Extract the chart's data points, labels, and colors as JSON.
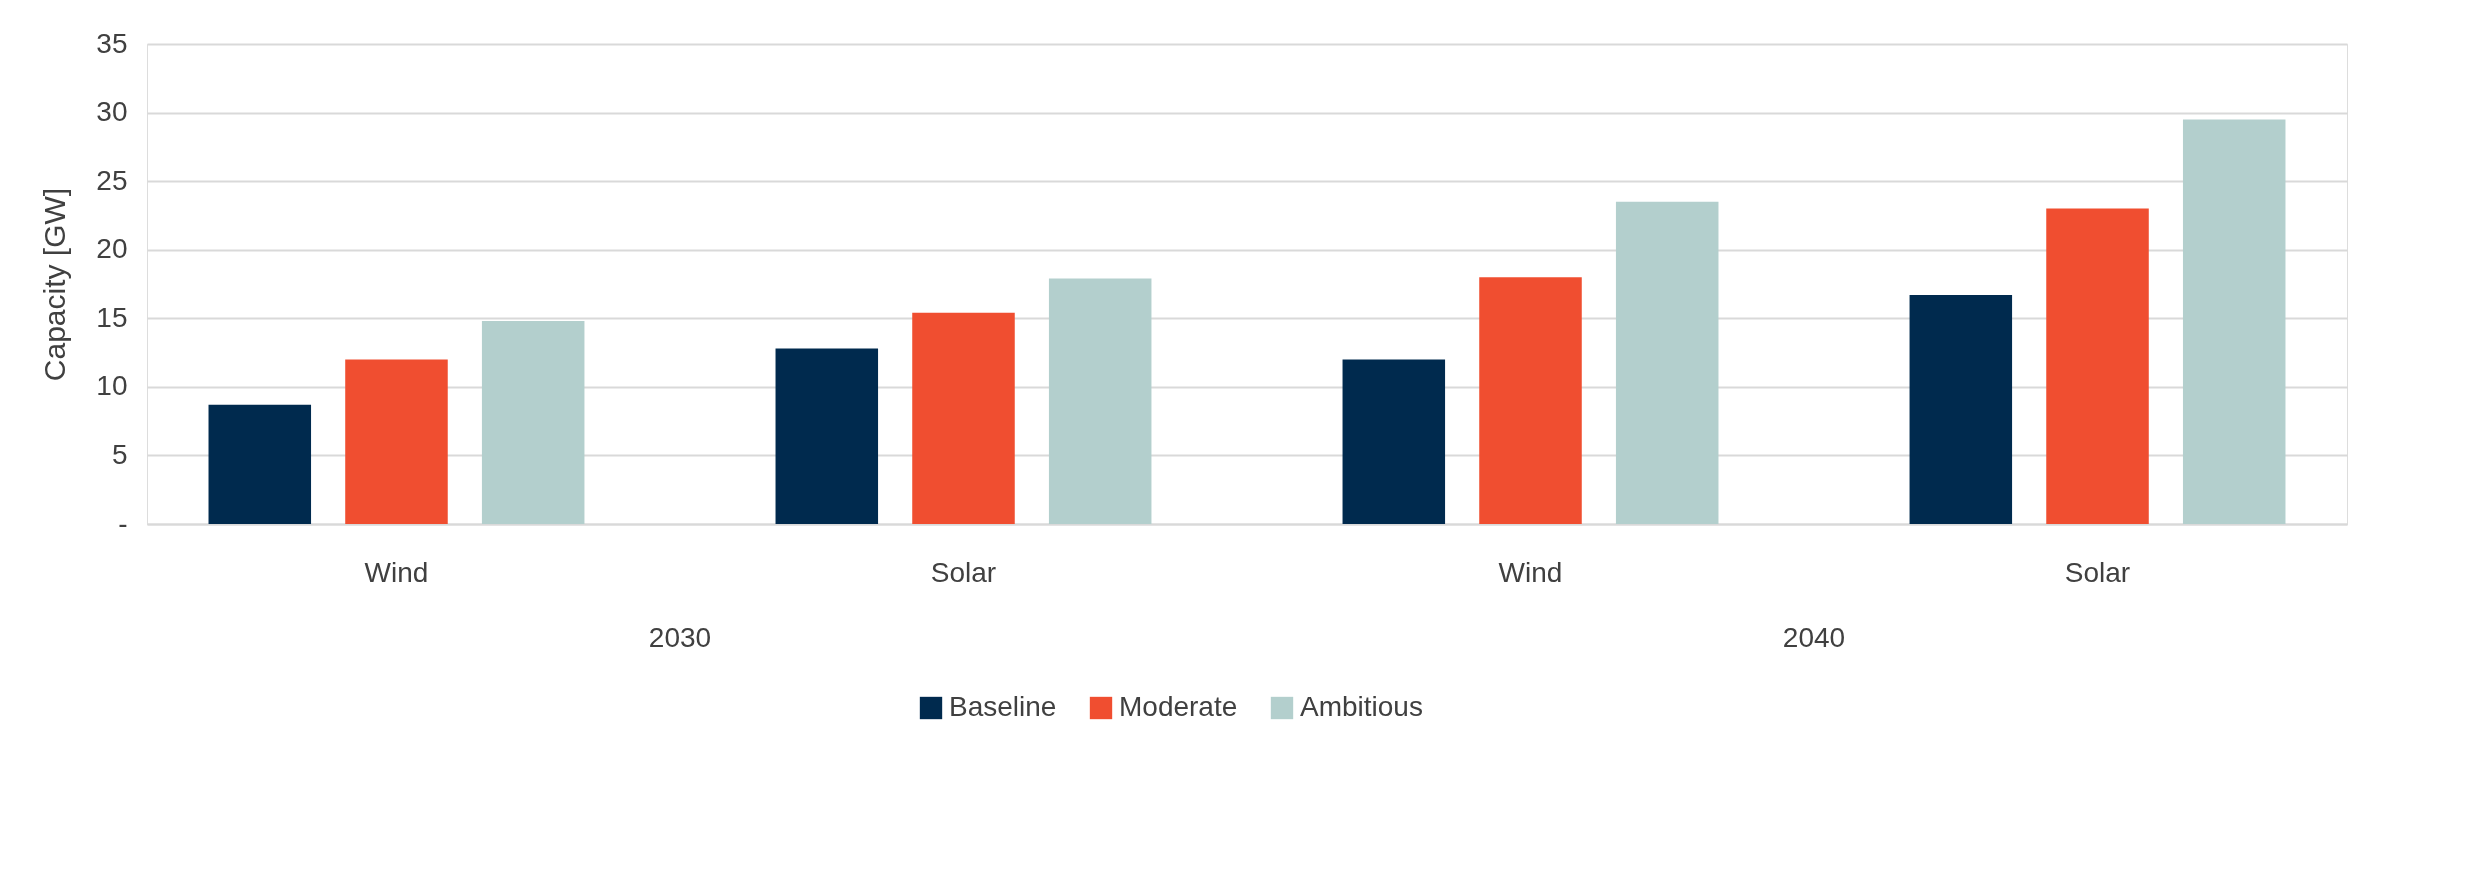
{
  "chart_data": {
    "type": "bar",
    "ylabel": "Capacity [GW]",
    "categories": [
      "Wind",
      "Solar",
      "Wind",
      "Solar"
    ],
    "annotations": [
      "2030",
      "2040"
    ],
    "series": [
      {
        "name": "Baseline",
        "color": "#002a4e",
        "values": [
          8.7,
          12.8,
          12,
          16.7
        ]
      },
      {
        "name": "Moderate",
        "color": "#f04e30",
        "values": [
          12,
          15.4,
          18,
          23
        ]
      },
      {
        "name": "Ambitious",
        "color": "#b3cfcd",
        "values": [
          14.8,
          17.9,
          23.5,
          29.5
        ]
      }
    ],
    "ylim": [
      0,
      35
    ],
    "yticks": [
      {
        "value": 0,
        "label": "-"
      },
      5,
      10,
      15,
      20,
      25,
      30,
      35
    ],
    "grid": "y",
    "legend": "bottom"
  }
}
